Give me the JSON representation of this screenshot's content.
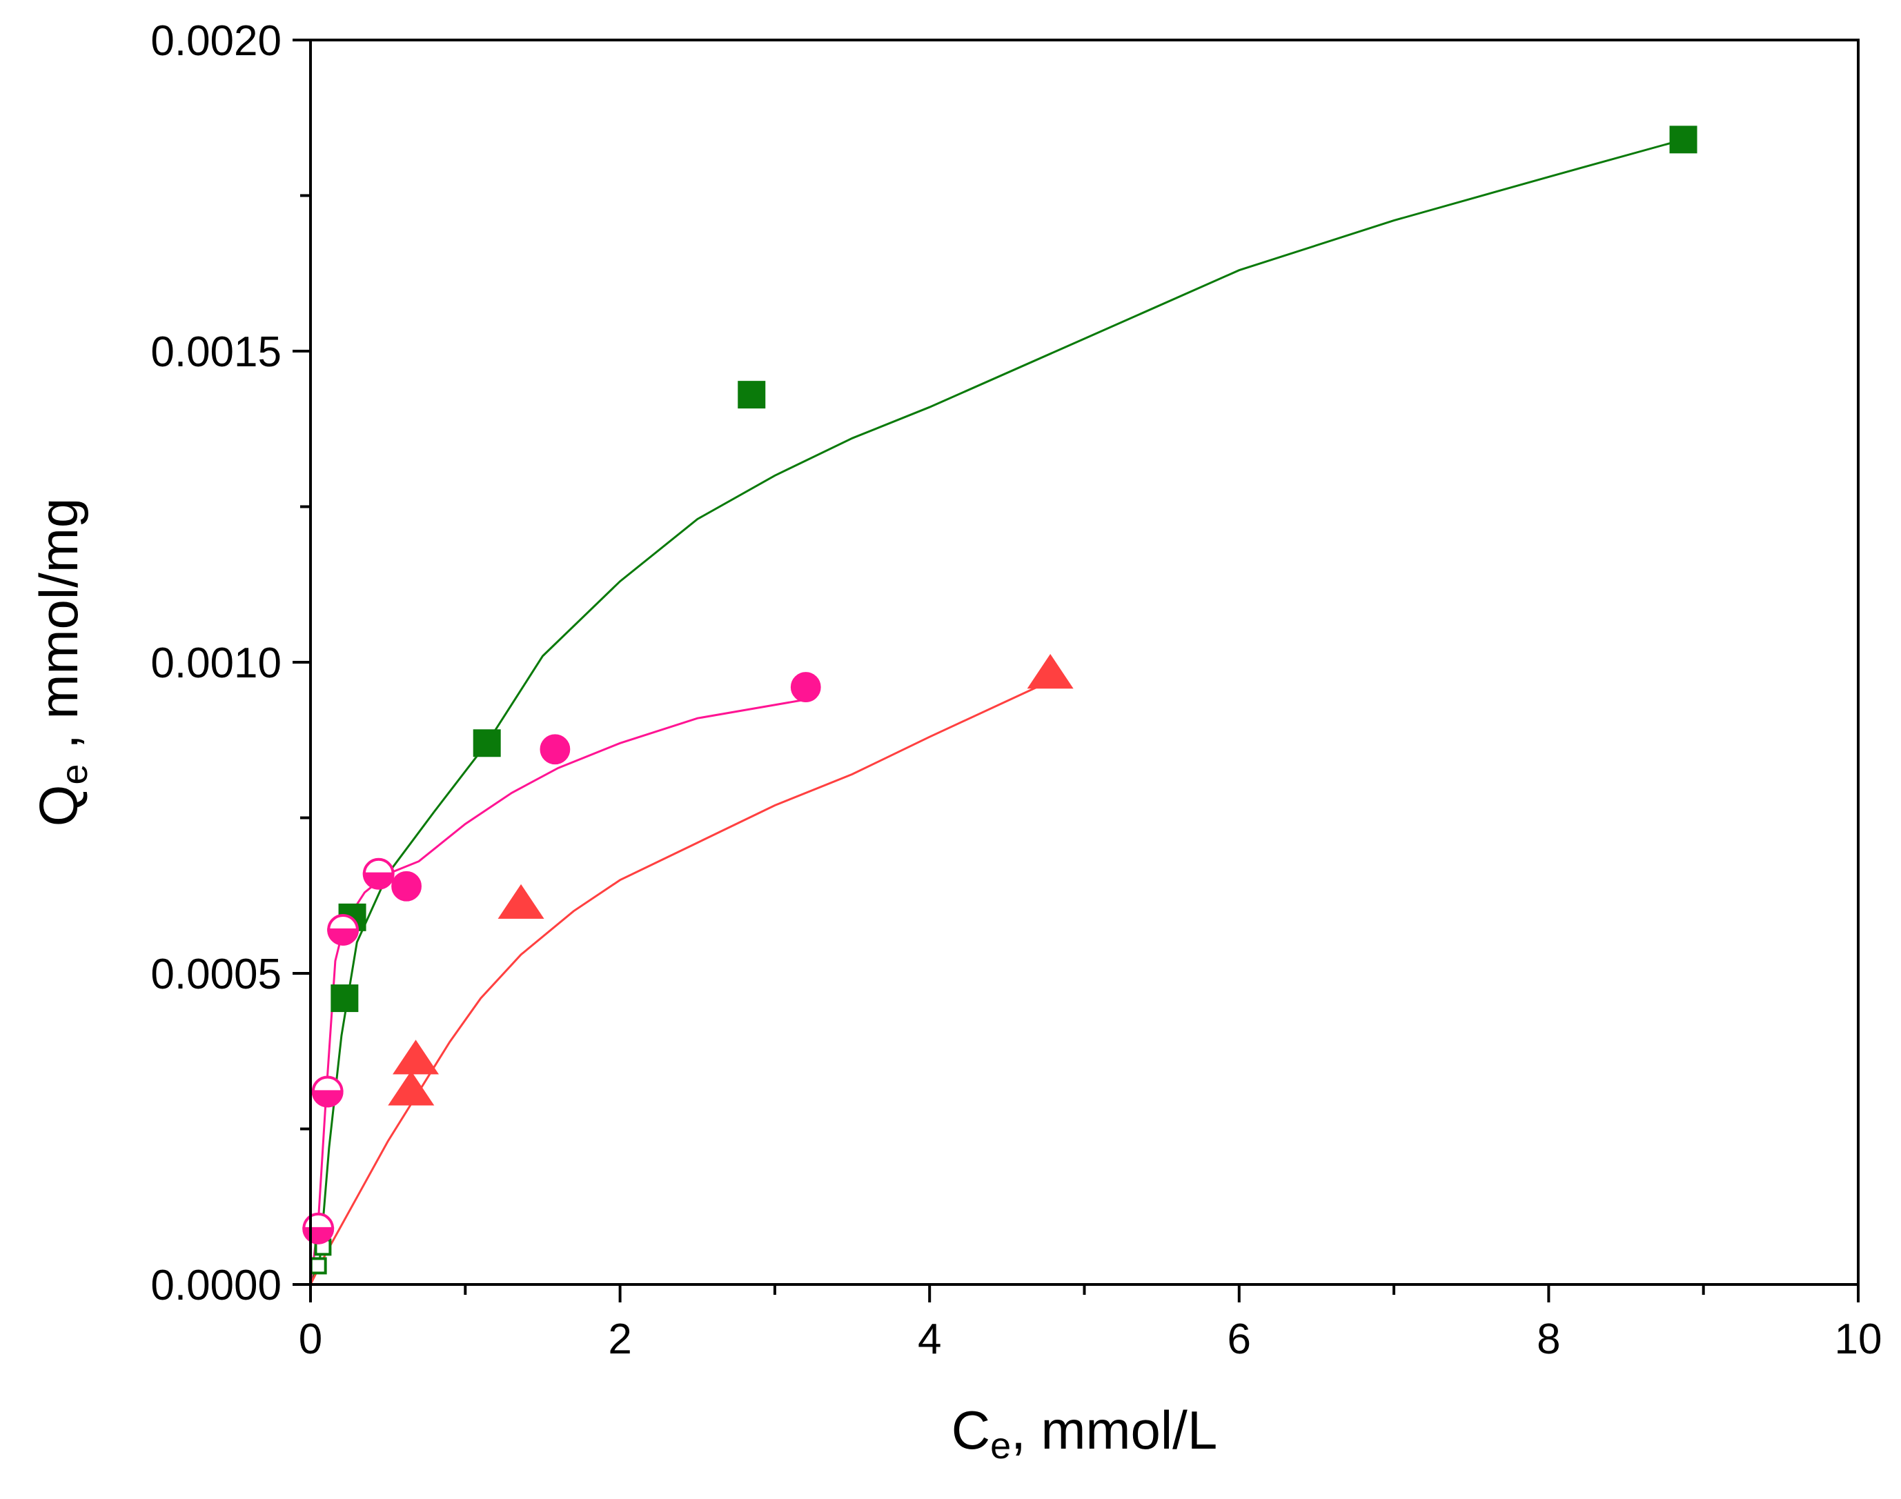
{
  "chart_data": {
    "type": "scatter",
    "title": "",
    "xlabel": {
      "main": "C",
      "sub": "e",
      "rest": ", mmol/L"
    },
    "ylabel": {
      "main": "Q",
      "sub": "e",
      "rest": " , mmol/mg"
    },
    "xlim": [
      0,
      10
    ],
    "ylim": [
      0,
      0.002
    ],
    "x_ticks": [
      0,
      2,
      4,
      6,
      8,
      10
    ],
    "x_tick_labels": [
      "0",
      "2",
      "4",
      "6",
      "8",
      "10"
    ],
    "x_minor_ticks": [
      1,
      3,
      5,
      7,
      9
    ],
    "y_ticks": [
      0,
      0.0005,
      0.001,
      0.0015,
      0.002
    ],
    "y_tick_labels": [
      "0.0000",
      "0.0005",
      "0.0010",
      "0.0015",
      "0.0020"
    ],
    "y_minor_ticks": [
      0.00025,
      0.00075,
      0.00125,
      0.00175
    ],
    "grid": false,
    "legend": "none",
    "series": [
      {
        "marker": "square",
        "color": "#0a7a0a",
        "points": [
          {
            "x": 0.05,
            "y": 3e-05,
            "style": "hollow"
          },
          {
            "x": 0.08,
            "y": 6e-05,
            "style": "hollow"
          },
          {
            "x": 0.22,
            "y": 0.00046,
            "style": "filled"
          },
          {
            "x": 0.27,
            "y": 0.00059,
            "style": "filled"
          },
          {
            "x": 1.14,
            "y": 0.00087,
            "style": "filled"
          },
          {
            "x": 2.85,
            "y": 0.00143,
            "style": "filled"
          },
          {
            "x": 8.87,
            "y": 0.00184,
            "style": "filled"
          }
        ],
        "fit": [
          [
            0,
            0
          ],
          [
            0.06,
            4e-05
          ],
          [
            0.12,
            0.00022
          ],
          [
            0.2,
            0.0004
          ],
          [
            0.3,
            0.00055
          ],
          [
            0.5,
            0.00066
          ],
          [
            0.8,
            0.00076
          ],
          [
            1.14,
            0.00087
          ],
          [
            1.5,
            0.00101
          ],
          [
            2.0,
            0.00113
          ],
          [
            2.5,
            0.00123
          ],
          [
            3.0,
            0.0013
          ],
          [
            3.5,
            0.00136
          ],
          [
            4.0,
            0.00141
          ],
          [
            5.0,
            0.00152
          ],
          [
            6.0,
            0.00163
          ],
          [
            7.0,
            0.00171
          ],
          [
            8.0,
            0.00178
          ],
          [
            8.87,
            0.00184
          ]
        ]
      },
      {
        "marker": "circle",
        "color": "#ff1493",
        "points": [
          {
            "x": 0.05,
            "y": 9e-05,
            "style": "half"
          },
          {
            "x": 0.11,
            "y": 0.00031,
            "style": "half"
          },
          {
            "x": 0.21,
            "y": 0.00057,
            "style": "half"
          },
          {
            "x": 0.44,
            "y": 0.00066,
            "style": "half"
          },
          {
            "x": 0.62,
            "y": 0.00064,
            "style": "filled"
          },
          {
            "x": 1.58,
            "y": 0.00086,
            "style": "filled"
          },
          {
            "x": 3.2,
            "y": 0.00096,
            "style": "filled"
          }
        ],
        "fit": [
          [
            0,
            0
          ],
          [
            0.05,
            0.0001
          ],
          [
            0.1,
            0.0003
          ],
          [
            0.16,
            0.00052
          ],
          [
            0.22,
            0.00058
          ],
          [
            0.35,
            0.00063
          ],
          [
            0.5,
            0.00066
          ],
          [
            0.7,
            0.00068
          ],
          [
            1.0,
            0.00074
          ],
          [
            1.3,
            0.00079
          ],
          [
            1.6,
            0.00083
          ],
          [
            2.0,
            0.00087
          ],
          [
            2.5,
            0.00091
          ],
          [
            3.2,
            0.00094
          ]
        ]
      },
      {
        "marker": "triangle",
        "color": "#ff4040",
        "points": [
          {
            "x": 0.65,
            "y": 0.00031,
            "style": "filled"
          },
          {
            "x": 0.68,
            "y": 0.00036,
            "style": "filled"
          },
          {
            "x": 1.36,
            "y": 0.00061,
            "style": "filled"
          },
          {
            "x": 4.78,
            "y": 0.00098,
            "style": "filled"
          }
        ],
        "fit": [
          [
            0,
            0
          ],
          [
            0.1,
            5e-05
          ],
          [
            0.3,
            0.00014
          ],
          [
            0.5,
            0.00023
          ],
          [
            0.7,
            0.00031
          ],
          [
            0.9,
            0.00039
          ],
          [
            1.1,
            0.00046
          ],
          [
            1.36,
            0.00053
          ],
          [
            1.7,
            0.0006
          ],
          [
            2.0,
            0.00065
          ],
          [
            2.5,
            0.00071
          ],
          [
            3.0,
            0.00077
          ],
          [
            3.5,
            0.00082
          ],
          [
            4.0,
            0.00088
          ],
          [
            4.78,
            0.00097
          ]
        ]
      }
    ]
  }
}
